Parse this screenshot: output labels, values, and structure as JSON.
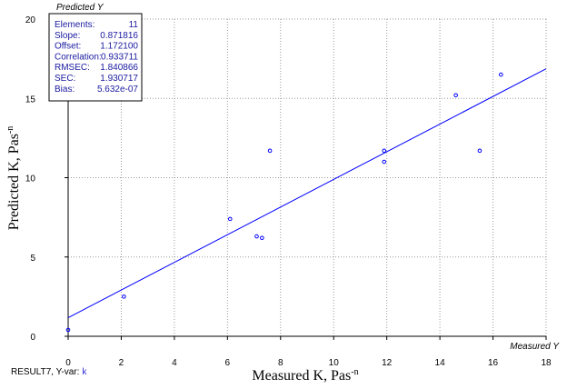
{
  "chart_data": {
    "type": "scatter",
    "xlabel": "Measured K, Pas",
    "xlabel_sup": "-n",
    "ylabel": "Predicted K, Pas",
    "ylabel_sup": "-n",
    "xlim": [
      0,
      18
    ],
    "ylim": [
      0,
      20
    ],
    "x_ticks": [
      "0",
      "2",
      "4",
      "6",
      "8",
      "10",
      "12",
      "14",
      "16",
      "18"
    ],
    "y_ticks": [
      "0",
      "5",
      "10",
      "15",
      "20"
    ],
    "grid": true,
    "x_corner_label": "Measured Y",
    "y_corner_label": "Predicted Y",
    "x": [
      0.0,
      2.1,
      6.1,
      7.1,
      7.3,
      7.6,
      11.9,
      11.9,
      14.6,
      15.5,
      16.3
    ],
    "y": [
      0.4,
      2.5,
      7.4,
      6.3,
      6.2,
      11.7,
      11.7,
      11.0,
      15.2,
      11.7,
      16.5
    ],
    "fit_line": {
      "slope": 0.871816,
      "offset": 1.1721
    },
    "stats": [
      {
        "label": "Elements:",
        "value": "11"
      },
      {
        "label": "Slope:",
        "value": "0.871816"
      },
      {
        "label": "Offset:",
        "value": "1.172100"
      },
      {
        "label": "Correlation:",
        "value": "0.933711"
      },
      {
        "label": "RMSEC:",
        "value": "1.840866"
      },
      {
        "label": "SEC:",
        "value": "1.930717"
      },
      {
        "label": "Bias:",
        "value": "5.632e-07"
      }
    ],
    "footer_result": "RESULT7, Y-var:",
    "footer_var": "k"
  },
  "colors": {
    "series": "#0000ff",
    "grid": "#9a9a9a",
    "stat_text": "#1a1aa0"
  }
}
